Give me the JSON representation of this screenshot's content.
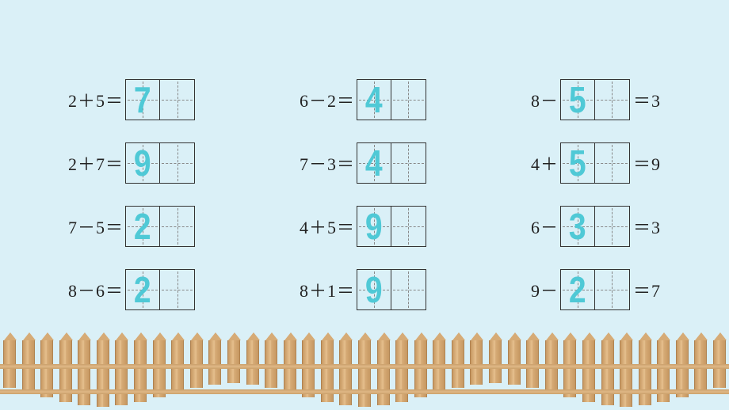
{
  "background_color": "#daf0f7",
  "text_color": "#222222",
  "digit_color": "#4fc9d6",
  "box_border_color": "#333333",
  "guide_color": "#888888",
  "fence_colors": [
    "#c79862",
    "#e6c08e",
    "#d6ab76"
  ],
  "columns": [
    {
      "rows": [
        {
          "before": "2＋5＝",
          "answer": "7",
          "after": ""
        },
        {
          "before": "2＋7＝",
          "answer": "9",
          "after": ""
        },
        {
          "before": "7－5＝",
          "answer": "2",
          "after": ""
        },
        {
          "before": "8－6＝",
          "answer": "2",
          "after": ""
        }
      ]
    },
    {
      "rows": [
        {
          "before": "6－2＝",
          "answer": "4",
          "after": ""
        },
        {
          "before": "7－3＝",
          "answer": "4",
          "after": ""
        },
        {
          "before": "4＋5＝",
          "answer": "9",
          "after": ""
        },
        {
          "before": "8＋1＝",
          "answer": "9",
          "after": ""
        }
      ]
    },
    {
      "rows": [
        {
          "before": "8－",
          "answer": "5",
          "after": "＝3"
        },
        {
          "before": "4＋",
          "answer": "5",
          "after": "＝9"
        },
        {
          "before": "6－",
          "answer": "3",
          "after": "＝3"
        },
        {
          "before": "9－",
          "answer": "2",
          "after": "＝7"
        }
      ]
    }
  ],
  "fence": {
    "picket_count": 39,
    "wave_heights": [
      60,
      66,
      72,
      78,
      82,
      84,
      82,
      78,
      72,
      66,
      60,
      56,
      54,
      56,
      60,
      66,
      72,
      78,
      82,
      84,
      82,
      78,
      72,
      66,
      60,
      56,
      54,
      56,
      60,
      66,
      72,
      78,
      82,
      84,
      82,
      78,
      72,
      66,
      60
    ]
  }
}
